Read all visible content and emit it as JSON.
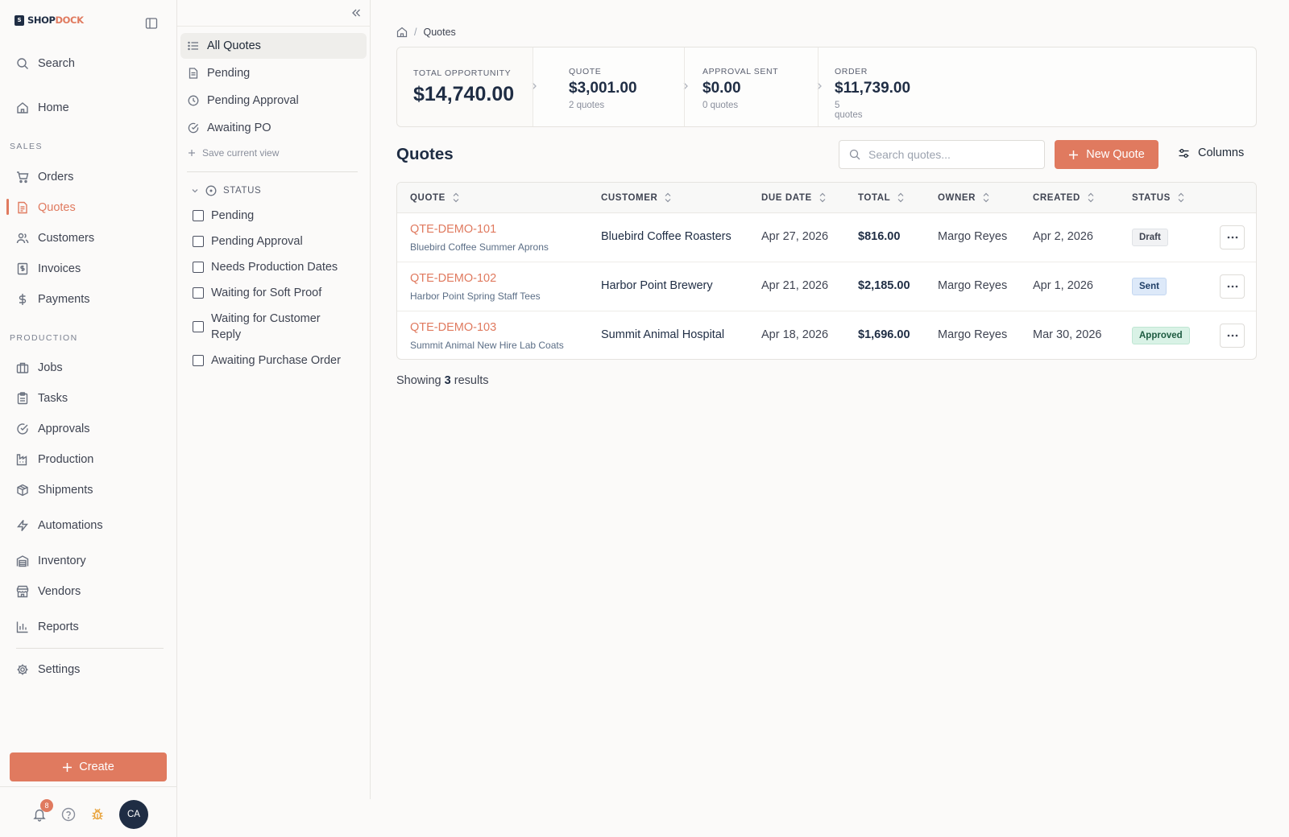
{
  "brand": {
    "logo_mark": "S",
    "name_part1": "SHOP",
    "name_part2": "DOCK",
    "accent": "#e07a5f",
    "navy": "#1f2d44"
  },
  "sidebar": {
    "search_label": "Search",
    "home_label": "Home",
    "sales_section": "SALES",
    "sales_items": [
      {
        "label": "Orders",
        "icon": "cart-icon"
      },
      {
        "label": "Quotes",
        "icon": "document-icon",
        "active": true
      },
      {
        "label": "Customers",
        "icon": "users-icon"
      },
      {
        "label": "Invoices",
        "icon": "receipt-icon"
      },
      {
        "label": "Payments",
        "icon": "dollar-icon"
      }
    ],
    "production_section": "PRODUCTION",
    "production_items": [
      {
        "label": "Jobs",
        "icon": "briefcase-icon"
      },
      {
        "label": "Tasks",
        "icon": "clipboard-icon"
      },
      {
        "label": "Approvals",
        "icon": "check-circle-icon"
      },
      {
        "label": "Production",
        "icon": "factory-icon"
      },
      {
        "label": "Shipments",
        "icon": "package-icon"
      }
    ],
    "automations_label": "Automations",
    "inventory_label": "Inventory",
    "vendors_label": "Vendors",
    "reports_label": "Reports",
    "settings_label": "Settings",
    "create_label": "Create",
    "notification_count": "8",
    "avatar_initials": "CA"
  },
  "filter_panel": {
    "views": [
      {
        "label": "All Quotes",
        "icon": "list-icon",
        "selected": true
      },
      {
        "label": "Pending",
        "icon": "file-icon"
      },
      {
        "label": "Pending Approval",
        "icon": "clock-icon"
      },
      {
        "label": "Awaiting PO",
        "icon": "check-circle-icon"
      }
    ],
    "save_view_label": "Save current view",
    "status_group_label": "STATUS",
    "status_options": [
      {
        "label": "Pending",
        "checked": false
      },
      {
        "label": "Pending Approval",
        "checked": false
      },
      {
        "label": "Needs Production Dates",
        "checked": false
      },
      {
        "label": "Waiting for Soft Proof",
        "checked": false
      },
      {
        "label": "Waiting for Customer Reply",
        "checked": false
      },
      {
        "label": "Awaiting Purchase Order",
        "checked": false
      }
    ]
  },
  "breadcrumb": {
    "current": "Quotes"
  },
  "stats": {
    "total": {
      "label": "TOTAL OPPORTUNITY",
      "value": "$14,740.00"
    },
    "stages": [
      {
        "label": "QUOTE",
        "value": "$3,001.00",
        "sub": "2 quotes"
      },
      {
        "label": "APPROVAL SENT",
        "value": "$0.00",
        "sub": "0 quotes"
      },
      {
        "label": "ORDER",
        "value": "$11,739.00",
        "sub": "5 quotes"
      }
    ]
  },
  "page_title": "Quotes",
  "search": {
    "placeholder": "Search quotes..."
  },
  "new_quote_label": "New Quote",
  "columns_label": "Columns",
  "table": {
    "headers": [
      "QUOTE",
      "CUSTOMER",
      "DUE DATE",
      "TOTAL",
      "OWNER",
      "CREATED",
      "STATUS"
    ],
    "rows": [
      {
        "id": "QTE-DEMO-101",
        "desc": "Bluebird Coffee Summer Aprons",
        "customer": "Bluebird Coffee Roasters",
        "due": "Apr 27, 2026",
        "total": "$816.00",
        "owner": "Margo Reyes",
        "created": "Apr 2, 2026",
        "status": "Draft"
      },
      {
        "id": "QTE-DEMO-102",
        "desc": "Harbor Point Spring Staff Tees",
        "customer": "Harbor Point Brewery",
        "due": "Apr 21, 2026",
        "total": "$2,185.00",
        "owner": "Margo Reyes",
        "created": "Apr 1, 2026",
        "status": "Sent"
      },
      {
        "id": "QTE-DEMO-103",
        "desc": "Summit Animal New Hire Lab Coats",
        "customer": "Summit Animal Hospital",
        "due": "Apr 18, 2026",
        "total": "$1,696.00",
        "owner": "Margo Reyes",
        "created": "Mar 30, 2026",
        "status": "Approved"
      }
    ]
  },
  "footer": {
    "showing_prefix": "Showing",
    "count": "3",
    "showing_suffix": "results"
  }
}
